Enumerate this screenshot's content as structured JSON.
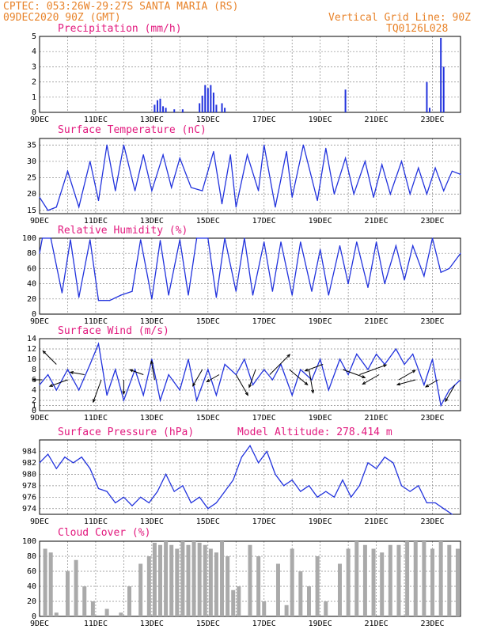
{
  "header": {
    "station": "CPTEC:  053:26W-29:27S  SANTA MARIA (RS)",
    "run": "09DEC2020 90Z (GMT)",
    "grid_line": "Vertical Grid Line: 90Z",
    "code": "TQ0126L028"
  },
  "colors": {
    "header": "#e8832a",
    "title": "#e2197e",
    "line": "#2233dd",
    "bars": "#2233dd",
    "cloud": "#aaaaaa"
  },
  "x_labels": [
    "9DEC",
    "11DEC",
    "13DEC",
    "15DEC",
    "17DEC",
    "19DEC",
    "21DEC",
    "23DEC"
  ],
  "x_range": [
    9,
    24
  ],
  "chart_data": [
    {
      "type": "bar",
      "title": "Precipitation (mm/h)",
      "ylim": [
        0,
        5
      ],
      "yticks": [
        "0",
        "1",
        "2",
        "3",
        "4",
        "5"
      ],
      "grid": true,
      "x": [
        13.1,
        13.2,
        13.3,
        13.4,
        13.5,
        13.8,
        14.1,
        14.7,
        14.8,
        14.9,
        15.0,
        15.1,
        15.2,
        15.3,
        15.5,
        15.6,
        19.9,
        22.8,
        22.9,
        23.3,
        23.4
      ],
      "values": [
        0.5,
        0.8,
        0.9,
        0.4,
        0.3,
        0.2,
        0.2,
        0.6,
        1.1,
        1.8,
        1.6,
        1.8,
        1.3,
        0.5,
        0.6,
        0.3,
        1.5,
        2.0,
        0.3,
        4.9,
        3.0
      ]
    },
    {
      "type": "line",
      "title": "Surface Temperature (nC)",
      "ylim": [
        14,
        37
      ],
      "yticks": [
        "15",
        "20",
        "25",
        "30",
        "35"
      ],
      "grid": true,
      "x": [
        9.0,
        9.3,
        9.6,
        10.0,
        10.4,
        10.8,
        11.1,
        11.4,
        11.7,
        12.0,
        12.4,
        12.7,
        13.0,
        13.4,
        13.7,
        14.0,
        14.4,
        14.8,
        15.2,
        15.5,
        15.8,
        16.0,
        16.4,
        16.8,
        17.0,
        17.4,
        17.8,
        18.0,
        18.4,
        18.9,
        19.2,
        19.5,
        19.9,
        20.2,
        20.6,
        20.9,
        21.2,
        21.5,
        21.9,
        22.2,
        22.5,
        22.8,
        23.1,
        23.4,
        23.7,
        24.0
      ],
      "values": [
        19,
        15,
        16,
        27,
        16,
        30,
        18,
        35,
        21,
        35,
        21,
        32,
        21,
        32,
        22,
        31,
        22,
        21,
        33,
        17,
        32,
        16,
        32,
        21,
        35,
        16,
        33,
        19,
        35,
        18,
        34,
        20,
        31,
        20,
        30,
        19,
        29,
        20,
        30,
        20,
        28,
        20,
        28,
        21,
        27,
        26
      ]
    },
    {
      "type": "line",
      "title": "Relative Humidity (%)",
      "ylim": [
        0,
        100
      ],
      "yticks": [
        "0",
        "20",
        "40",
        "60",
        "80",
        "100"
      ],
      "grid": true,
      "x": [
        9.0,
        9.1,
        9.4,
        9.8,
        10.1,
        10.4,
        10.8,
        11.1,
        11.5,
        11.9,
        12.3,
        12.6,
        13.0,
        13.3,
        13.6,
        14.0,
        14.3,
        14.6,
        15.0,
        15.3,
        15.6,
        16.0,
        16.3,
        16.6,
        17.0,
        17.3,
        17.6,
        18.0,
        18.3,
        18.7,
        19.0,
        19.3,
        19.7,
        20.0,
        20.3,
        20.7,
        21.0,
        21.3,
        21.7,
        22.0,
        22.3,
        22.7,
        23.0,
        23.3,
        23.6,
        24.0
      ],
      "values": [
        80,
        100,
        100,
        28,
        98,
        22,
        98,
        18,
        18,
        25,
        30,
        98,
        20,
        97,
        25,
        98,
        25,
        100,
        100,
        22,
        100,
        30,
        100,
        25,
        95,
        30,
        95,
        25,
        95,
        30,
        85,
        25,
        90,
        40,
        95,
        35,
        95,
        40,
        90,
        45,
        90,
        50,
        100,
        55,
        60,
        80
      ]
    },
    {
      "type": "line",
      "title": "Surface Wind (m/s)",
      "ylim": [
        0,
        14
      ],
      "yticks": [
        "0",
        "1",
        "2",
        "4",
        "6",
        "8",
        "10",
        "12",
        "14"
      ],
      "grid": true,
      "x": [
        9.0,
        9.3,
        9.6,
        10.0,
        10.4,
        10.8,
        11.1,
        11.4,
        11.7,
        12.0,
        12.4,
        12.7,
        13.0,
        13.3,
        13.6,
        14.0,
        14.3,
        14.6,
        15.0,
        15.3,
        15.6,
        16.0,
        16.3,
        16.6,
        17.0,
        17.3,
        17.6,
        18.0,
        18.3,
        18.7,
        19.0,
        19.3,
        19.7,
        20.0,
        20.3,
        20.7,
        21.0,
        21.3,
        21.7,
        22.0,
        22.3,
        22.7,
        23.0,
        23.3,
        23.6,
        24.0
      ],
      "values": [
        5,
        7,
        4,
        8,
        4,
        9,
        13,
        3,
        8,
        2,
        8,
        3,
        10,
        2,
        7,
        4,
        10,
        2,
        8,
        3,
        9,
        7,
        10,
        5,
        8,
        6,
        9,
        3,
        8,
        6,
        10,
        4,
        10,
        7,
        11,
        8,
        11,
        9,
        12,
        9,
        11,
        5,
        10,
        1,
        4,
        6
      ]
    },
    {
      "type": "line",
      "title": "Surface Pressure (hPa)",
      "ylim": [
        973,
        986
      ],
      "yticks": [
        "974",
        "976",
        "978",
        "980",
        "982",
        "984"
      ],
      "grid": true,
      "x": [
        9.0,
        9.3,
        9.6,
        9.9,
        10.2,
        10.5,
        10.8,
        11.1,
        11.4,
        11.7,
        12.0,
        12.3,
        12.6,
        12.9,
        13.2,
        13.5,
        13.8,
        14.1,
        14.4,
        14.7,
        15.0,
        15.3,
        15.6,
        15.9,
        16.2,
        16.5,
        16.8,
        17.1,
        17.4,
        17.7,
        18.0,
        18.3,
        18.6,
        18.9,
        19.2,
        19.5,
        19.8,
        20.1,
        20.4,
        20.7,
        21.0,
        21.3,
        21.6,
        21.9,
        22.2,
        22.5,
        22.8,
        23.1,
        23.4,
        23.7
      ],
      "values": [
        982,
        983.5,
        981,
        983,
        982,
        983,
        981,
        977.5,
        977,
        975,
        976,
        974.5,
        976,
        975,
        977,
        980,
        977,
        978,
        975,
        976,
        974,
        975,
        977,
        979,
        983,
        985,
        982,
        984,
        980,
        978,
        979,
        977,
        978,
        976,
        977,
        976,
        979,
        976,
        978,
        982,
        981,
        983,
        982,
        978,
        977,
        978,
        975,
        975,
        974,
        973
      ]
    },
    {
      "type": "bar",
      "title": "Cloud Cover (%)",
      "ylim": [
        0,
        100
      ],
      "yticks": [
        "0",
        "20",
        "40",
        "60",
        "80",
        "100"
      ],
      "grid": true,
      "x": [
        9.2,
        9.4,
        9.6,
        10.0,
        10.3,
        10.6,
        10.9,
        11.4,
        11.9,
        12.2,
        12.6,
        12.9,
        13.1,
        13.3,
        13.5,
        13.7,
        13.9,
        14.1,
        14.3,
        14.5,
        14.7,
        14.9,
        15.1,
        15.3,
        15.5,
        15.7,
        15.9,
        16.1,
        16.5,
        16.8,
        17.0,
        17.5,
        17.8,
        18.0,
        18.3,
        18.6,
        18.9,
        19.2,
        19.7,
        20.0,
        20.3,
        20.6,
        20.9,
        21.2,
        21.5,
        21.8,
        22.1,
        22.4,
        22.7,
        23.0,
        23.3,
        23.6,
        23.9
      ],
      "values": [
        90,
        85,
        5,
        60,
        75,
        40,
        20,
        10,
        5,
        40,
        70,
        80,
        98,
        95,
        100,
        95,
        90,
        100,
        95,
        100,
        98,
        95,
        90,
        85,
        100,
        80,
        35,
        40,
        95,
        80,
        20,
        70,
        15,
        90,
        60,
        40,
        80,
        20,
        70,
        90,
        100,
        95,
        90,
        85,
        95,
        95,
        100,
        100,
        100,
        90,
        100,
        95,
        90
      ]
    }
  ],
  "wind": {
    "arrows": [
      [
        9.1,
        6,
        2
      ],
      [
        9.6,
        9,
        4
      ],
      [
        10.0,
        6,
        4
      ],
      [
        10.6,
        7,
        3
      ],
      [
        11.2,
        6,
        5
      ],
      [
        12.0,
        6,
        3
      ],
      [
        12.7,
        7,
        3
      ],
      [
        13.1,
        6,
        4
      ],
      [
        14.8,
        8,
        4
      ],
      [
        15.4,
        7,
        3
      ],
      [
        16.0,
        7,
        5
      ],
      [
        16.7,
        8,
        4
      ],
      [
        17.2,
        7,
        6
      ],
      [
        17.9,
        8,
        5
      ],
      [
        18.6,
        8,
        5
      ],
      [
        19.1,
        9,
        4
      ],
      [
        19.8,
        8,
        5
      ],
      [
        20.4,
        7,
        6
      ],
      [
        21.1,
        7,
        4
      ],
      [
        21.8,
        6,
        4
      ],
      [
        22.4,
        6,
        4
      ],
      [
        23.2,
        6,
        3
      ],
      [
        23.8,
        5,
        4
      ]
    ],
    "angles": [
      180,
      135,
      200,
      170,
      250,
      270,
      160,
      100,
      240,
      210,
      300,
      250,
      45,
      320,
      280,
      200,
      340,
      20,
      210,
      30,
      195,
      210,
      240
    ]
  },
  "panel_extra": {
    "model_altitude": "Model Altitude: 278.414 m"
  }
}
